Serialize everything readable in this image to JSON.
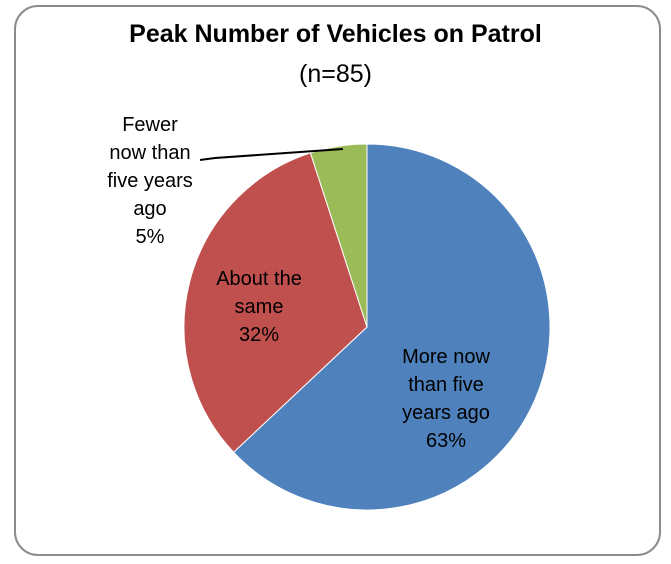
{
  "chart_data": {
    "type": "pie",
    "title": "Peak Number of Vehicles on Patrol",
    "subtitle": "(n=85)",
    "slices": [
      {
        "name": "More now than five years ago",
        "value": 63,
        "color": "#4f81bd",
        "label_lines": [
          "More now",
          "than five",
          "years ago",
          "63%"
        ]
      },
      {
        "name": "About the same",
        "value": 32,
        "color": "#c0504d",
        "label_lines": [
          "About the",
          "same",
          "32%"
        ]
      },
      {
        "name": "Fewer now than five years ago",
        "value": 5,
        "color": "#9bbb59",
        "label_lines": [
          "Fewer",
          "now than",
          "five years",
          "ago",
          "5%"
        ]
      }
    ]
  }
}
